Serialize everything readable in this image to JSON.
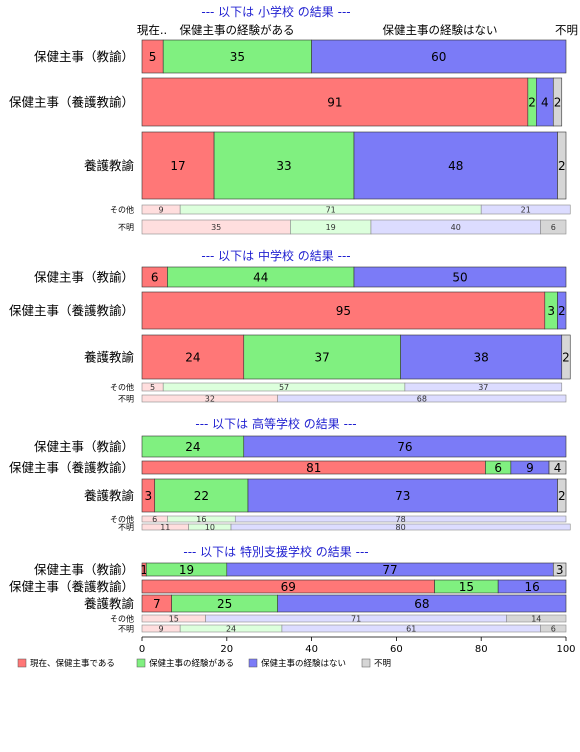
{
  "chart_data": {
    "type": "bar",
    "orientation": "horizontal",
    "stacked": true,
    "xlim": [
      0,
      100
    ],
    "x_ticks": [
      0,
      20,
      40,
      60,
      80,
      100
    ],
    "column_headers": [
      "現在..",
      "保健主事の経験がある",
      "保健主事の経験はない",
      "不明"
    ],
    "legend": {
      "placement": "bottom-left",
      "entries": [
        "現在、保健主事である",
        "保健主事の経験がある",
        "保健主事の経験はない",
        "不明"
      ]
    },
    "colors": {
      "main": [
        "#ff7777",
        "#80f080",
        "#7b7bf7",
        "#d6d6d6"
      ],
      "light": [
        "#ffdede",
        "#dcffdc",
        "#dcdcff",
        "#d6d6d6"
      ]
    },
    "sections": [
      {
        "title": "--- 以下は 小学校 の結果 ---",
        "rows": [
          {
            "label": "保健主事（教諭）",
            "values": [
              5,
              35,
              60,
              0
            ],
            "labels": [
              "5",
              "35",
              "60",
              ""
            ],
            "style": "main"
          },
          {
            "label": "保健主事（養護教諭）",
            "values": [
              91,
              2,
              4,
              2
            ],
            "labels": [
              "91",
              "2",
              "4",
              "2"
            ],
            "style": "main"
          },
          {
            "label": "養護教諭",
            "values": [
              17,
              33,
              48,
              2
            ],
            "labels": [
              "17",
              "33",
              "48",
              "2"
            ],
            "style": "main"
          },
          {
            "label": "その他",
            "values": [
              9,
              71,
              21,
              0
            ],
            "labels": [
              "9",
              "71",
              "21",
              ""
            ],
            "style": "light"
          },
          {
            "label": "不明",
            "values": [
              35,
              19,
              40,
              6
            ],
            "labels": [
              "35",
              "19",
              "40",
              "6"
            ],
            "style": "light"
          }
        ]
      },
      {
        "title": "--- 以下は 中学校 の結果 ---",
        "rows": [
          {
            "label": "保健主事（教諭）",
            "values": [
              6,
              44,
              50,
              0
            ],
            "labels": [
              "6",
              "44",
              "50",
              ""
            ],
            "style": "main"
          },
          {
            "label": "保健主事（養護教諭）",
            "values": [
              95,
              3,
              2,
              0
            ],
            "labels": [
              "95",
              "3",
              "2",
              ""
            ],
            "style": "main"
          },
          {
            "label": "養護教諭",
            "values": [
              24,
              37,
              38,
              2
            ],
            "labels": [
              "24",
              "37",
              "38",
              "2"
            ],
            "style": "main"
          },
          {
            "label": "その他",
            "values": [
              5,
              57,
              37,
              0
            ],
            "labels": [
              "5",
              "57",
              "37",
              ""
            ],
            "style": "light"
          },
          {
            "label": "不明",
            "values": [
              32,
              0,
              68,
              0
            ],
            "labels": [
              "32",
              "",
              "68",
              ""
            ],
            "style": "light"
          }
        ]
      },
      {
        "title": "--- 以下は 高等学校 の結果 ---",
        "rows": [
          {
            "label": "保健主事（教諭）",
            "values": [
              0,
              24,
              76,
              0
            ],
            "labels": [
              "",
              "24",
              "76",
              ""
            ],
            "style": "main"
          },
          {
            "label": "保健主事（養護教諭）",
            "values": [
              81,
              6,
              9,
              4
            ],
            "labels": [
              "81",
              "6",
              "9",
              "4"
            ],
            "style": "main"
          },
          {
            "label": "養護教諭",
            "values": [
              3,
              22,
              73,
              2
            ],
            "labels": [
              "3",
              "22",
              "73",
              "2"
            ],
            "style": "main"
          },
          {
            "label": "その他",
            "values": [
              6,
              16,
              78,
              0
            ],
            "labels": [
              "6",
              "16",
              "78",
              ""
            ],
            "style": "light"
          },
          {
            "label": "不明",
            "values": [
              11,
              10,
              80,
              0
            ],
            "labels": [
              "11",
              "10",
              "80",
              ""
            ],
            "style": "light"
          }
        ]
      },
      {
        "title": "--- 以下は 特別支援学校 の結果 ---",
        "rows": [
          {
            "label": "保健主事（教諭）",
            "values": [
              1,
              19,
              77,
              3
            ],
            "labels": [
              "1",
              "19",
              "77",
              "3"
            ],
            "style": "main"
          },
          {
            "label": "保健主事（養護教諭）",
            "values": [
              69,
              15,
              16,
              0
            ],
            "labels": [
              "69",
              "15",
              "16",
              ""
            ],
            "style": "main"
          },
          {
            "label": "養護教諭",
            "values": [
              7,
              25,
              68,
              0
            ],
            "labels": [
              "7",
              "25",
              "68",
              ""
            ],
            "style": "main"
          },
          {
            "label": "その他",
            "values": [
              15,
              0,
              71,
              14
            ],
            "labels": [
              "15",
              "",
              "71",
              "14"
            ],
            "style": "light"
          },
          {
            "label": "不明",
            "values": [
              9,
              24,
              61,
              6
            ],
            "labels": [
              "9",
              "24",
              "61",
              "6"
            ],
            "style": "light"
          }
        ]
      }
    ]
  }
}
